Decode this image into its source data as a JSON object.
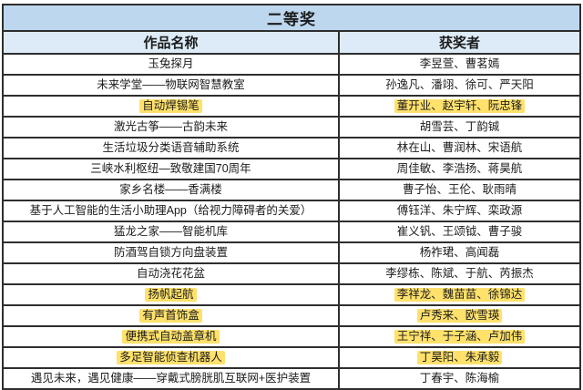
{
  "table": {
    "title": "二等奖",
    "columns": [
      "作品名称",
      "获奖者"
    ],
    "rows": [
      {
        "work": "玉兔探月",
        "winners": "李昱萱、曹茗嫣",
        "highlight": false
      },
      {
        "work": "未来学堂——物联网智慧教室",
        "winners": "孙逸凡、潘翊、徐可、严天阳",
        "highlight": false
      },
      {
        "work": "自动焊锡笔",
        "winners": "董开业、赵宇轩、阮忠锋",
        "highlight": true
      },
      {
        "work": "激光古筝——古韵未来",
        "winners": "胡雪芸、丁韵铖",
        "highlight": false
      },
      {
        "work": "生活垃圾分类语音辅助系统",
        "winners": "林在山、曹润林、宋语航",
        "highlight": false
      },
      {
        "work": "三峡水利枢纽—致敬建国70周年",
        "winners": "周佳敏、李浩扬、蒋昊航",
        "highlight": false
      },
      {
        "work": "家乡名楼——香满楼",
        "winners": "曹子怡、王伦、耿雨晴",
        "highlight": false
      },
      {
        "work": "基于人工智能的生活小助理App（给视力障碍者的关爱）",
        "winners": "傅钰洋、朱宁辉、栾政源",
        "highlight": false
      },
      {
        "work": "猛龙之家——智能机库",
        "winners": "崔义钒、王颂钺、曹子骏",
        "highlight": false
      },
      {
        "work": "防酒驾自锁方向盘装置",
        "winners": "杨祚珺、高闻磊",
        "highlight": false
      },
      {
        "work": "自动浇花花盆",
        "winners": "李缪栋、陈斌、于航、芮振杰",
        "highlight": false
      },
      {
        "work": "扬帆起航",
        "winners": "李祥龙、魏苗苗、徐锦达",
        "highlight": true
      },
      {
        "work": "有声首饰盒",
        "winners": "卢秀来、欧雪瑛",
        "highlight": true
      },
      {
        "work": "便携式自动盖章机",
        "winners": "王宁祥、于子涵、卢加伟",
        "highlight": true
      },
      {
        "work": "多足智能侦查机器人",
        "winners": "丁昊阳、朱承毅",
        "highlight": true
      },
      {
        "work": "遇见未来，遇见健康——穿戴式膀胱肌互联网+医护装置",
        "winners": "丁春宇、陈海榆",
        "highlight": false
      }
    ]
  },
  "colors": {
    "title_bg": "#bdd7ee",
    "header_bg": "#dcebf7",
    "border": "#2e2e2e",
    "highlight": "#ffe16b",
    "text": "#1c1c1c"
  }
}
